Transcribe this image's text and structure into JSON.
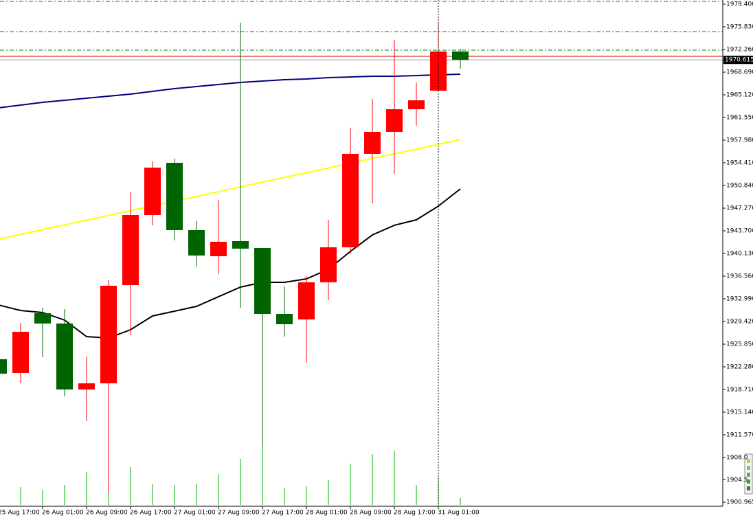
{
  "chart_data": {
    "type": "candlestick",
    "categories": [
      "25 Aug 17:00",
      null,
      "26 Aug 01:00",
      null,
      "26 Aug 09:00",
      null,
      "26 Aug 17:00",
      null,
      "27 Aug 01:00",
      null,
      "27 Aug 09:00",
      null,
      "27 Aug 17:00",
      null,
      "28 Aug 01:00",
      null,
      "28 Aug 09:00",
      null,
      "28 Aug 17:00",
      null,
      "31 Aug 01:00",
      null
    ],
    "open": [
      1923.47,
      1921.31,
      1930.72,
      1929.1,
      1918.71,
      1919.68,
      1935.15,
      1946.19,
      1954.41,
      1943.81,
      1939.7,
      1942.08,
      1941.0,
      1930.61,
      1929.74,
      1935.59,
      1941.1,
      1955.82,
      1959.28,
      1962.85,
      1965.77,
      1971.94
    ],
    "high": [
      1923.79,
      1929.2,
      1931.58,
      1931.37,
      1923.9,
      1935.91,
      1949.76,
      1954.63,
      1955.06,
      1945.22,
      1948.57,
      1976.48,
      1941.0,
      1934.94,
      1936.56,
      1945.43,
      1959.93,
      1964.47,
      1973.77,
      1967.07,
      1976.48,
      1972.37
    ],
    "low": [
      1920.98,
      1919.68,
      1923.79,
      1917.63,
      1913.73,
      1902.48,
      1927.26,
      1944.57,
      1942.19,
      1938.07,
      1936.89,
      1931.58,
      1909.73,
      1927.04,
      1922.93,
      1932.77,
      1940.02,
      1948.03,
      1952.68,
      1960.25,
      1965.77,
      1969.23
    ],
    "close": [
      1921.2,
      1927.8,
      1929.1,
      1918.71,
      1919.68,
      1935.05,
      1946.19,
      1953.65,
      1943.81,
      1939.81,
      1941.97,
      1940.89,
      1930.61,
      1928.99,
      1935.59,
      1941.1,
      1955.82,
      1959.28,
      1962.85,
      1964.25,
      1971.94,
      1970.64
    ],
    "up_color": "#ff0000",
    "down_color": "#006400",
    "volume": {
      "color": "#00b000",
      "lim": [
        0,
        100
      ],
      "values": [
        null,
        26,
        22,
        29,
        48,
        77,
        55,
        30,
        29,
        31,
        45,
        67,
        85,
        25,
        27,
        36,
        60,
        74,
        78,
        29,
        40,
        10
      ]
    },
    "overlays": [
      {
        "color": "#000000",
        "values": [
          1932.02,
          1931.15,
          1930.83,
          1929.64,
          1927.04,
          1926.82,
          1928.12,
          1930.29,
          1931.04,
          1931.8,
          1933.32,
          1934.83,
          1935.59,
          1935.59,
          1936.13,
          1937.64,
          1940.46,
          1943.05,
          1944.57,
          1945.43,
          1947.59,
          1950.3
        ]
      },
      {
        "color": "#ffff00",
        "values": [
          1942.4,
          1943.15,
          1943.89,
          1944.64,
          1945.38,
          1946.13,
          1946.88,
          1947.62,
          1948.37,
          1949.11,
          1949.86,
          1950.61,
          1951.35,
          1952.1,
          1952.84,
          1953.59,
          1954.34,
          1955.08,
          1955.83,
          1956.57,
          1957.32,
          1958.07
        ]
      },
      {
        "color": "#000080",
        "values": [
          1963.06,
          1963.5,
          1963.93,
          1964.25,
          1964.58,
          1964.9,
          1965.23,
          1965.66,
          1966.09,
          1966.42,
          1966.74,
          1967.07,
          1967.28,
          1967.5,
          1967.61,
          1967.82,
          1967.93,
          1968.04,
          1968.04,
          1968.15,
          1968.26,
          1968.37
        ]
      }
    ],
    "levels": [
      {
        "value": 1979.83,
        "color": "#008000",
        "style": "dashdot"
      },
      {
        "value": 1975.07,
        "color": "#008000",
        "style": "dashdot"
      },
      {
        "value": 1972.15,
        "color": "#008000",
        "style": "dashdot"
      },
      {
        "value": 1971.18,
        "color": "#c00000",
        "style": "solid"
      }
    ],
    "price_label": {
      "value": 1970.615,
      "label": "1970.615"
    },
    "ylim": [
      1900.32,
      1980.05
    ],
    "yticks": [
      {
        "value": 1979.4,
        "label": "1979.400"
      },
      {
        "value": 1975.83,
        "label": "1975.830"
      },
      {
        "value": 1972.26,
        "label": "1972.260"
      },
      {
        "value": 1968.69,
        "label": "1968.690"
      },
      {
        "value": 1965.12,
        "label": "1965.120"
      },
      {
        "value": 1961.55,
        "label": "1961.550"
      },
      {
        "value": 1957.98,
        "label": "1957.980"
      },
      {
        "value": 1954.41,
        "label": "1954.410"
      },
      {
        "value": 1950.84,
        "label": "1950.840"
      },
      {
        "value": 1947.27,
        "label": "1947.270"
      },
      {
        "value": 1943.7,
        "label": "1943.700"
      },
      {
        "value": 1940.13,
        "label": "1940.130"
      },
      {
        "value": 1936.56,
        "label": "1936.560"
      },
      {
        "value": 1932.99,
        "label": "1932.990"
      },
      {
        "value": 1929.42,
        "label": "1929.420"
      },
      {
        "value": 1925.85,
        "label": "1925.850"
      },
      {
        "value": 1922.28,
        "label": "1922.280"
      },
      {
        "value": 1918.71,
        "label": "1918.710"
      },
      {
        "value": 1915.14,
        "label": "1915.140"
      },
      {
        "value": 1911.57,
        "label": "1911.570"
      },
      {
        "value": 1908.0,
        "label": "1908.0"
      },
      {
        "value": 1904.5,
        "label": "1904.5"
      },
      {
        "value": 1900.965,
        "label": "1900.965"
      }
    ]
  }
}
